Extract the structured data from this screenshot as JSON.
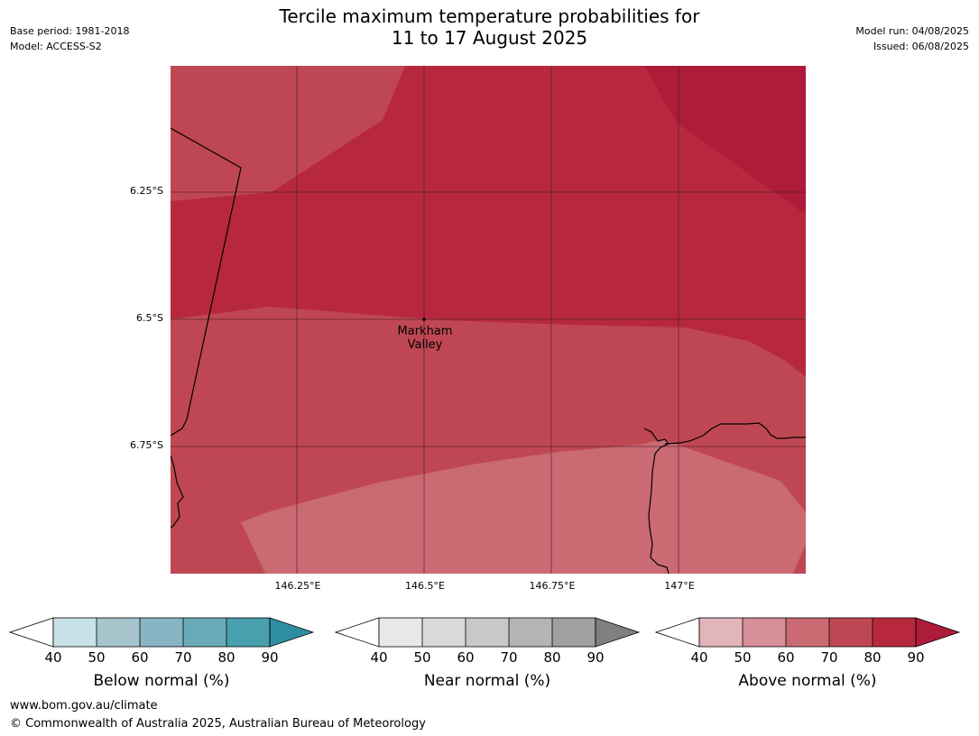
{
  "title_line1": "Tercile maximum temperature probabilities for",
  "title_line2": "11 to 17 August 2025",
  "meta_left": {
    "base_period": "Base period: 1981-2018",
    "model": "Model: ACCESS-S2"
  },
  "meta_right": {
    "model_run": "Model run: 04/08/2025",
    "issued": "Issued: 06/08/2025"
  },
  "map": {
    "lat_ticks": [
      "6.25°S",
      "6.5°S",
      "6.75°S"
    ],
    "lon_ticks": [
      "146.25°E",
      "146.5°E",
      "146.75°E",
      "147°E"
    ],
    "place_line1": "Markham",
    "place_line2": "Valley",
    "colors": {
      "above_80_90": "#b7283f",
      "above_90_plus": "#ae1c39",
      "above_70_80": "#bf4753",
      "above_60_70": "#ca6a72"
    }
  },
  "colorbars": [
    {
      "name": "Below normal (%)",
      "ticks": [
        "40",
        "50",
        "60",
        "70",
        "80",
        "90"
      ],
      "colors": [
        "#ffffff",
        "#c8e1e6",
        "#a7c5cc",
        "#88b5c3",
        "#6aaab8",
        "#489fae",
        "#2f8fa0"
      ]
    },
    {
      "name": "Near normal (%)",
      "ticks": [
        "40",
        "50",
        "60",
        "70",
        "80",
        "90"
      ],
      "colors": [
        "#ffffff",
        "#e8e8e8",
        "#d9d9d9",
        "#c8c8c8",
        "#b4b4b4",
        "#a0a0a0",
        "#808080"
      ]
    },
    {
      "name": "Above normal (%)",
      "ticks": [
        "40",
        "50",
        "60",
        "70",
        "80",
        "90"
      ],
      "colors": [
        "#ffffff",
        "#e2b5ba",
        "#d68e97",
        "#ca6a72",
        "#bf4753",
        "#b7283f",
        "#ae1c39"
      ]
    }
  ],
  "footer": {
    "url": "www.bom.gov.au/climate",
    "copyright": "© Commonwealth of Australia 2025, Australian Bureau of Meteorology"
  }
}
